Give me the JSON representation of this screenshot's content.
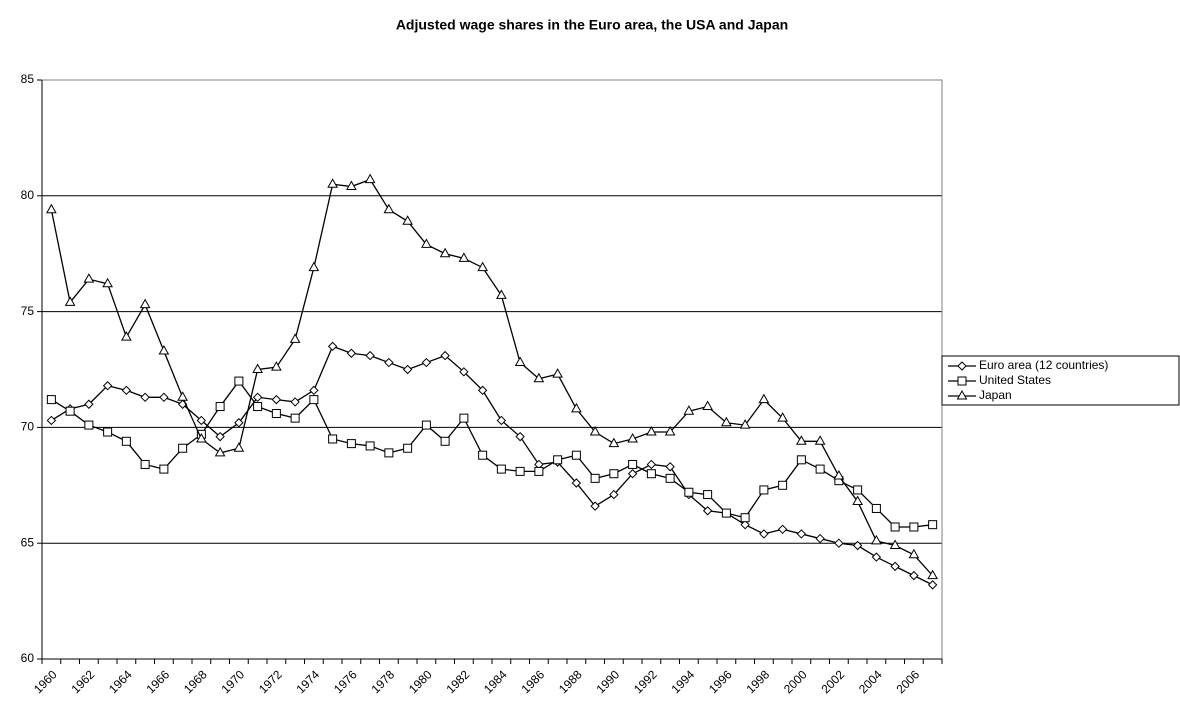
{
  "chart_data": {
    "type": "line",
    "title": "Adjusted wage shares in the Euro area, the USA and Japan",
    "categories": [
      "1960",
      null,
      "1962",
      null,
      "1964",
      null,
      "1966",
      null,
      "1968",
      null,
      "1970",
      null,
      "1972",
      null,
      "1974",
      null,
      "1976",
      null,
      "1978",
      null,
      "1980",
      null,
      "1982",
      null,
      "1984",
      null,
      "1986",
      null,
      "1988",
      null,
      "1990",
      null,
      "1992",
      null,
      "1994",
      null,
      "1996",
      null,
      "1998",
      null,
      "2000",
      null,
      "2002",
      null,
      "2004",
      null,
      "2006",
      null
    ],
    "series": [
      {
        "name": "Euro area (12 countries)",
        "color": "#000000",
        "marker": "diamond",
        "values": [
          70.3,
          70.8,
          71.0,
          71.8,
          71.6,
          71.3,
          71.3,
          71.0,
          70.3,
          69.6,
          70.2,
          71.3,
          71.2,
          71.1,
          71.6,
          73.5,
          73.2,
          73.1,
          72.8,
          72.5,
          72.8,
          73.1,
          72.4,
          71.6,
          70.3,
          69.6,
          68.4,
          68.5,
          67.6,
          66.6,
          67.1,
          68.0,
          68.4,
          68.3,
          67.1,
          66.4,
          66.3,
          65.8,
          65.4,
          65.6,
          65.4,
          65.2,
          65.0,
          64.9,
          64.4,
          64.0,
          63.6,
          63.2
        ]
      },
      {
        "name": "United States",
        "color": "#000000",
        "marker": "square",
        "values": [
          71.2,
          70.7,
          70.1,
          69.8,
          69.4,
          68.4,
          68.2,
          69.1,
          69.7,
          70.9,
          72.0,
          70.9,
          70.6,
          70.4,
          71.2,
          69.5,
          69.3,
          69.2,
          68.9,
          69.1,
          70.1,
          69.4,
          70.4,
          68.8,
          68.2,
          68.1,
          68.1,
          68.6,
          68.8,
          67.8,
          68.0,
          68.4,
          68.0,
          67.8,
          67.2,
          67.1,
          66.3,
          66.1,
          67.3,
          67.5,
          68.6,
          68.2,
          67.7,
          67.3,
          66.5,
          65.7,
          65.7,
          65.8
        ]
      },
      {
        "name": "Japan",
        "color": "#000000",
        "marker": "triangle",
        "values": [
          79.4,
          75.4,
          76.4,
          76.2,
          73.9,
          75.3,
          73.3,
          71.3,
          69.5,
          68.9,
          69.1,
          72.5,
          72.6,
          73.8,
          76.9,
          80.5,
          80.4,
          80.7,
          79.4,
          78.9,
          77.9,
          77.5,
          77.3,
          76.9,
          75.7,
          72.8,
          72.1,
          72.3,
          70.8,
          69.8,
          69.3,
          69.5,
          69.8,
          69.8,
          70.7,
          70.9,
          70.2,
          70.1,
          71.2,
          70.4,
          69.4,
          69.4,
          67.9,
          66.8,
          65.1,
          64.9,
          64.5,
          63.6
        ]
      }
    ],
    "ylim": [
      60,
      85
    ],
    "yticks": [
      60,
      65,
      70,
      75,
      80,
      85
    ],
    "grid": true,
    "legend": "right"
  }
}
